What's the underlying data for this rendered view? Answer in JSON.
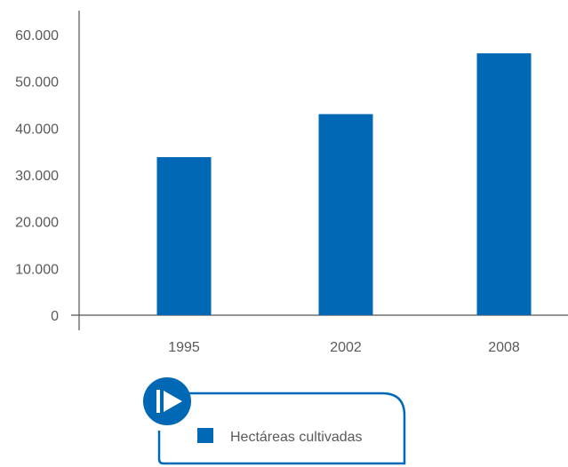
{
  "chart_data": {
    "type": "bar",
    "categories": [
      "1995",
      "2002",
      "2008"
    ],
    "series": [
      {
        "name": "Hectáreas cultivadas",
        "values": [
          33800,
          43000,
          56000
        ],
        "color": "#0068b5"
      }
    ],
    "yticks": [
      "0",
      "10.000",
      "20.000",
      "30.000",
      "40.000",
      "50.000",
      "60.000"
    ],
    "ytick_values": [
      0,
      10000,
      20000,
      30000,
      40000,
      50000,
      60000
    ],
    "ylim": [
      0,
      60000
    ],
    "grid": false,
    "legend_position": "bottom",
    "title": "",
    "xlabel": "",
    "ylabel": ""
  },
  "legend": {
    "label": "Hectáreas cultivadas",
    "icon": "play-icon",
    "accent": "#0068b5"
  }
}
